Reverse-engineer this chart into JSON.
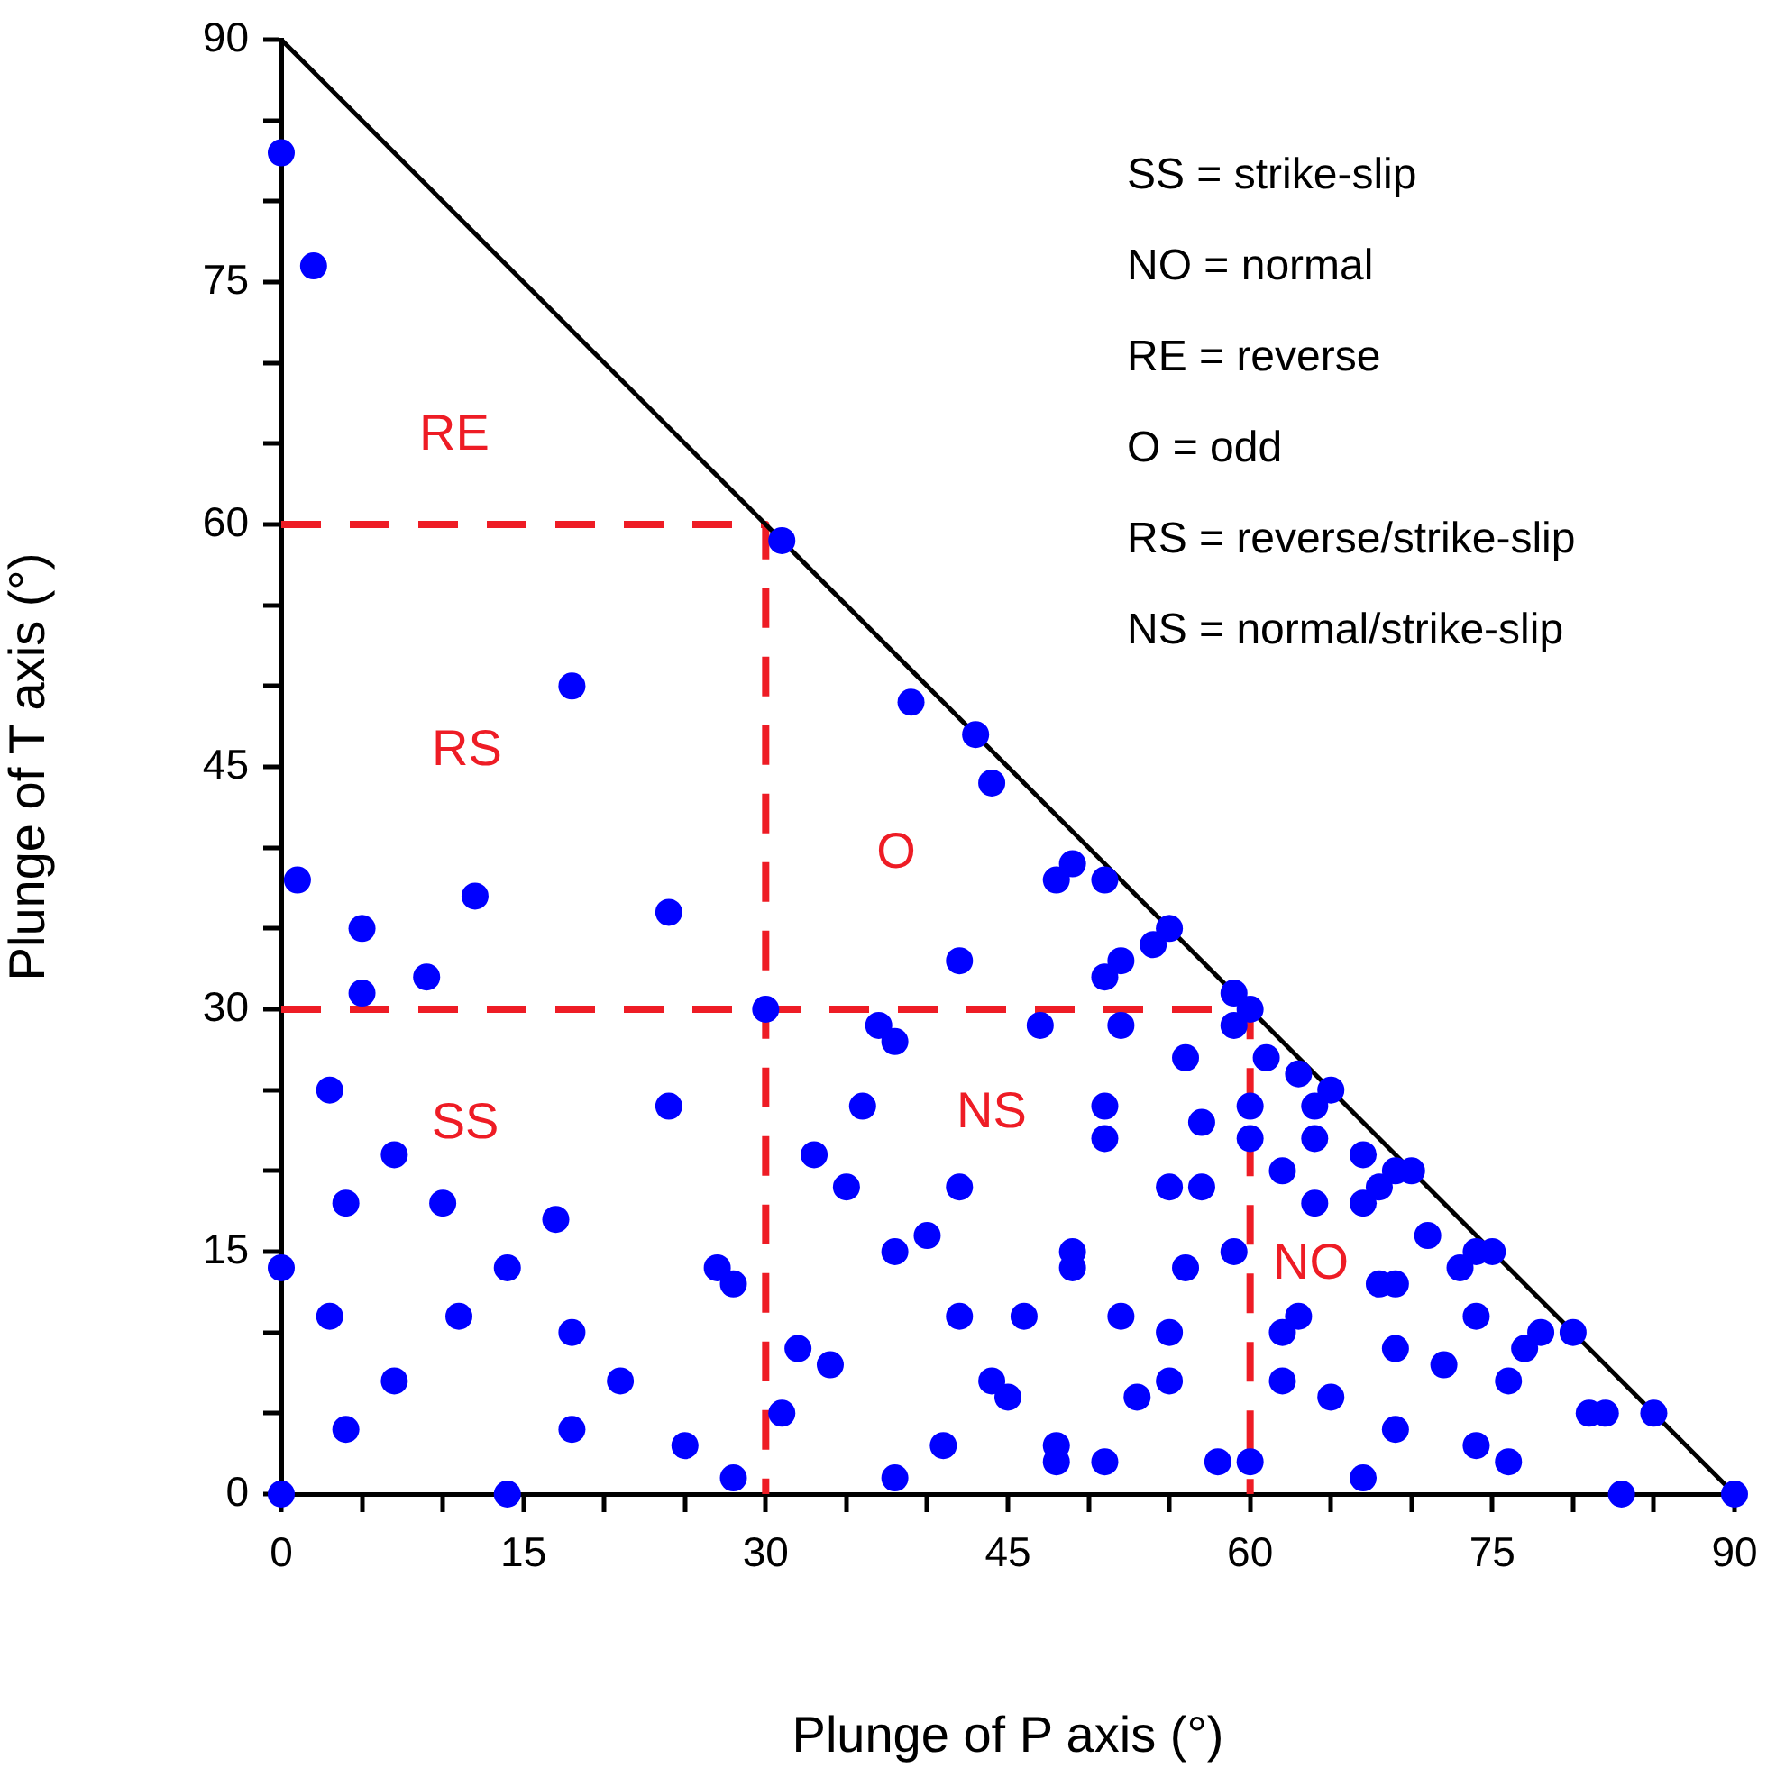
{
  "chart_data": {
    "type": "scatter",
    "xlabel": "Plunge of P axis (°)",
    "ylabel": "Plunge of T axis (°)",
    "xlim": [
      0,
      90
    ],
    "ylim": [
      0,
      90
    ],
    "xticks": [
      0,
      {
        "value": 5,
        "label": null
      },
      {
        "value": 10,
        "label": null
      },
      15,
      {
        "value": 20,
        "label": null
      },
      {
        "value": 25,
        "label": null
      },
      30,
      {
        "value": 35,
        "label": null
      },
      {
        "value": 40,
        "label": null
      },
      45,
      {
        "value": 50,
        "label": null
      },
      {
        "value": 55,
        "label": null
      },
      60,
      {
        "value": 65,
        "label": null
      },
      {
        "value": 70,
        "label": null
      },
      75,
      {
        "value": 80,
        "label": null
      },
      {
        "value": 85,
        "label": null
      },
      90
    ],
    "yticks": [
      0,
      {
        "value": 5,
        "label": null
      },
      {
        "value": 10,
        "label": null
      },
      15,
      {
        "value": 20,
        "label": null
      },
      {
        "value": 25,
        "label": null
      },
      30,
      {
        "value": 35,
        "label": null
      },
      {
        "value": 40,
        "label": null
      },
      45,
      {
        "value": 50,
        "label": null
      },
      {
        "value": 55,
        "label": null
      },
      60,
      {
        "value": 65,
        "label": null
      },
      {
        "value": 70,
        "label": null
      },
      75,
      {
        "value": 80,
        "label": null
      },
      {
        "value": 85,
        "label": null
      },
      90
    ],
    "grid": false,
    "legend": false,
    "series": [
      {
        "type": "line",
        "color": "#000000",
        "marker": "none",
        "line_style": "solid",
        "x": [
          0,
          90
        ],
        "values": [
          90,
          0
        ]
      },
      {
        "type": "line",
        "color": "#ee1c25",
        "marker": "none",
        "line_style": "dashed",
        "x": [
          0,
          30,
          30
        ],
        "values": [
          60,
          60,
          0
        ]
      },
      {
        "type": "line",
        "color": "#ee1c25",
        "marker": "none",
        "line_style": "dashed",
        "x": [
          0,
          60,
          60
        ],
        "values": [
          30,
          30,
          0
        ]
      },
      {
        "color": "#0000ff",
        "marker": "circle",
        "x": [
          0,
          2,
          31,
          18,
          39,
          43,
          44,
          1,
          12,
          5,
          24,
          9,
          5,
          30,
          3,
          24,
          7,
          33,
          4,
          10,
          17,
          0,
          14,
          27,
          28,
          3,
          11,
          18,
          32,
          34,
          7,
          21,
          4,
          18,
          31,
          25,
          28,
          0,
          14,
          48,
          49,
          51,
          42,
          51,
          52,
          54,
          55,
          59,
          60,
          37,
          38,
          47,
          52,
          59,
          56,
          36,
          51,
          51,
          57,
          35,
          42,
          55,
          57,
          38,
          40,
          49,
          49,
          56,
          59,
          42,
          46,
          52,
          55,
          44,
          45,
          53,
          55,
          41,
          48,
          48,
          51,
          58,
          60,
          38,
          61,
          63,
          65,
          64,
          60,
          60,
          64,
          67,
          69,
          70,
          68,
          67,
          62,
          64,
          71,
          74,
          75,
          73,
          68,
          69,
          63,
          62,
          74,
          69,
          78,
          80,
          77,
          72,
          76,
          62,
          65,
          69,
          81,
          82,
          85,
          74,
          76,
          67,
          83,
          90
        ],
        "values": [
          83,
          76,
          59,
          50,
          49,
          47,
          44,
          38,
          37,
          35,
          36,
          32,
          31,
          30,
          25,
          24,
          21,
          21,
          18,
          18,
          17,
          14,
          14,
          14,
          13,
          11,
          11,
          10,
          9,
          8,
          7,
          7,
          4,
          4,
          5,
          3,
          1,
          0,
          0,
          38,
          39,
          38,
          33,
          32,
          33,
          34,
          35,
          31,
          30,
          29,
          28,
          29,
          29,
          29,
          27,
          24,
          24,
          22,
          23,
          19,
          19,
          19,
          19,
          15,
          16,
          15,
          14,
          14,
          15,
          11,
          11,
          11,
          10,
          7,
          6,
          6,
          7,
          3,
          3,
          2,
          2,
          2,
          2,
          1,
          27,
          26,
          25,
          24,
          24,
          22,
          22,
          21,
          20,
          20,
          19,
          18,
          20,
          18,
          16,
          15,
          15,
          14,
          13,
          13,
          11,
          10,
          11,
          9,
          10,
          10,
          9,
          8,
          7,
          7,
          6,
          4,
          5,
          5,
          5,
          3,
          2,
          1,
          0,
          0
        ]
      }
    ],
    "annotations": [
      "RE",
      "RS",
      "O",
      "SS",
      "NS",
      "NO",
      "SS = strike-slip",
      "NO = normal",
      "RE = reverse",
      "O = odd",
      "RS = reverse/strike-slip",
      "NS = normal/strike-slip"
    ]
  }
}
